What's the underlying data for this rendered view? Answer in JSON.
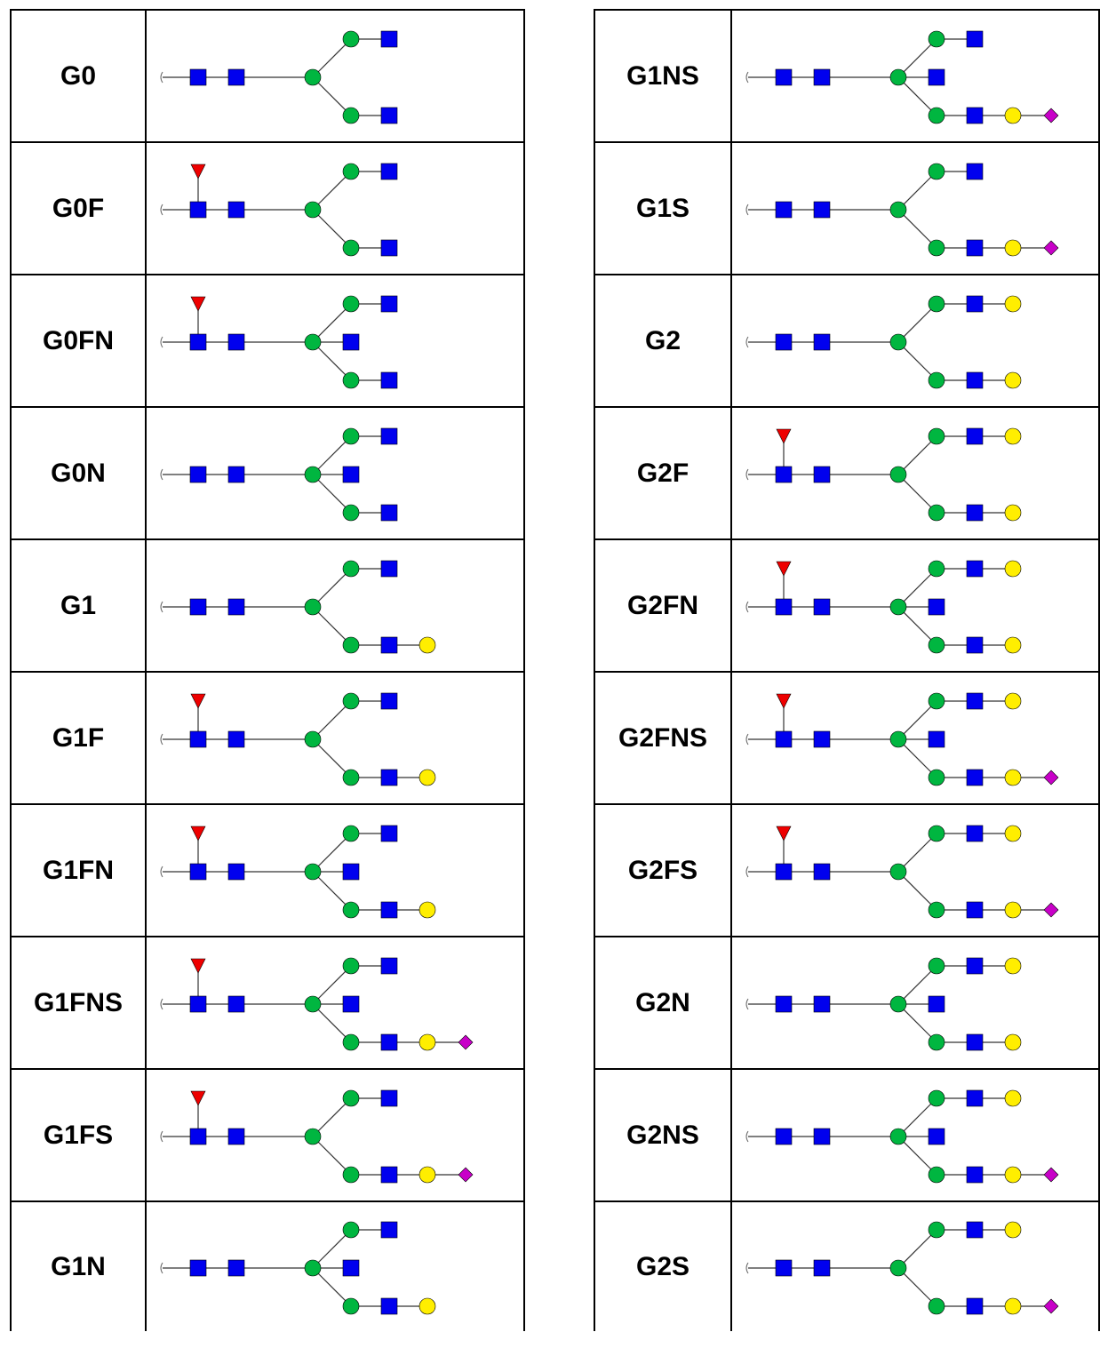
{
  "tables": [
    {
      "rows": [
        {
          "name": "G0",
          "fucose": false,
          "bisect": false,
          "arm_top": [
            "Glc",
            "GlcNAc"
          ],
          "arm_bottom": [
            "Man",
            "GlcNAc"
          ]
        },
        {
          "name": "G0F",
          "fucose": true,
          "bisect": false,
          "arm_top": [
            "Man",
            "GlcNAc"
          ],
          "arm_bottom": [
            "Man",
            "GlcNAc"
          ]
        },
        {
          "name": "G0FN",
          "fucose": true,
          "bisect": true,
          "arm_top": [
            "Man",
            "GlcNAc"
          ],
          "arm_bottom": [
            "Man",
            "GlcNAc"
          ]
        },
        {
          "name": "G0N",
          "fucose": false,
          "bisect": true,
          "arm_top": [
            "Man",
            "GlcNAc"
          ],
          "arm_bottom": [
            "Man",
            "GlcNAc"
          ]
        },
        {
          "name": "G1",
          "fucose": false,
          "bisect": false,
          "arm_top": [
            "Man",
            "GlcNAc"
          ],
          "arm_bottom": [
            "Man",
            "GlcNAc",
            "Gal"
          ]
        },
        {
          "name": "G1F",
          "fucose": true,
          "bisect": false,
          "arm_top": [
            "Man",
            "GlcNAc"
          ],
          "arm_bottom": [
            "Man",
            "GlcNAc",
            "Gal"
          ]
        },
        {
          "name": "G1FN",
          "fucose": true,
          "bisect": true,
          "arm_top": [
            "Man",
            "GlcNAc"
          ],
          "arm_bottom": [
            "Man",
            "GlcNAc",
            "Gal"
          ]
        },
        {
          "name": "G1FNS",
          "fucose": true,
          "bisect": true,
          "arm_top": [
            "Man",
            "GlcNAc"
          ],
          "arm_bottom": [
            "Man",
            "GlcNAc",
            "Gal",
            "Neu5Ac"
          ]
        },
        {
          "name": "G1FS",
          "fucose": true,
          "bisect": false,
          "arm_top": [
            "Man",
            "GlcNAc"
          ],
          "arm_bottom": [
            "Man",
            "GlcNAc",
            "Gal",
            "Neu5Ac"
          ]
        },
        {
          "name": "G1N",
          "fucose": false,
          "bisect": true,
          "arm_top": [
            "Man",
            "GlcNAc"
          ],
          "arm_bottom": [
            "Man",
            "GlcNAc",
            "Gal"
          ]
        }
      ]
    },
    {
      "rows": [
        {
          "name": "G1NS",
          "fucose": false,
          "bisect": true,
          "arm_top": [
            "Man",
            "GlcNAc"
          ],
          "arm_bottom": [
            "Man",
            "GlcNAc",
            "Gal",
            "Neu5Ac"
          ]
        },
        {
          "name": "G1S",
          "fucose": false,
          "bisect": false,
          "arm_top": [
            "Man",
            "GlcNAc"
          ],
          "arm_bottom": [
            "Man",
            "GlcNAc",
            "Gal",
            "Neu5Ac"
          ]
        },
        {
          "name": "G2",
          "fucose": false,
          "bisect": false,
          "arm_top": [
            "Man",
            "GlcNAc",
            "Gal"
          ],
          "arm_bottom": [
            "Man",
            "GlcNAc",
            "Gal"
          ]
        },
        {
          "name": "G2F",
          "fucose": true,
          "bisect": false,
          "arm_top": [
            "Man",
            "GlcNAc",
            "Gal"
          ],
          "arm_bottom": [
            "Man",
            "GlcNAc",
            "Gal"
          ]
        },
        {
          "name": "G2FN",
          "fucose": true,
          "bisect": true,
          "arm_top": [
            "Man",
            "GlcNAc",
            "Gal"
          ],
          "arm_bottom": [
            "Man",
            "GlcNAc",
            "Gal"
          ]
        },
        {
          "name": "G2FNS",
          "fucose": true,
          "bisect": true,
          "arm_top": [
            "Man",
            "GlcNAc",
            "Gal"
          ],
          "arm_bottom": [
            "Man",
            "GlcNAc",
            "Gal",
            "Neu5Ac"
          ]
        },
        {
          "name": "G2FS",
          "fucose": true,
          "bisect": false,
          "arm_top": [
            "Man",
            "GlcNAc",
            "Gal"
          ],
          "arm_bottom": [
            "Man",
            "GlcNAc",
            "Gal",
            "Neu5Ac"
          ]
        },
        {
          "name": "G2N",
          "fucose": false,
          "bisect": true,
          "arm_top": [
            "Man",
            "GlcNAc",
            "Gal"
          ],
          "arm_bottom": [
            "Man",
            "GlcNAc",
            "Gal"
          ]
        },
        {
          "name": "G2NS",
          "fucose": false,
          "bisect": true,
          "arm_top": [
            "Man",
            "GlcNAc",
            "Gal"
          ],
          "arm_bottom": [
            "Man",
            "GlcNAc",
            "Gal",
            "Neu5Ac"
          ]
        },
        {
          "name": "G2S",
          "fucose": false,
          "bisect": false,
          "arm_top": [
            "Man",
            "GlcNAc",
            "Gal"
          ],
          "arm_bottom": [
            "Man",
            "GlcNAc",
            "Gal",
            "Neu5Ac"
          ]
        }
      ]
    }
  ],
  "colors": {
    "GlcNAc": "#0000ee",
    "Man": "#00b640",
    "Glc": "#00b640",
    "Gal": "#ffee00",
    "Neu5Ac": "#c800c8",
    "Fuc": "#ee0000",
    "line": "#333333",
    "border": "#000000"
  },
  "icons": {
    "GlcNAc": "blue-square-icon",
    "Man": "green-circle-icon",
    "Glc": "green-circle-icon",
    "Gal": "yellow-circle-icon",
    "Neu5Ac": "purple-diamond-icon",
    "Fuc": "red-triangle-icon"
  }
}
